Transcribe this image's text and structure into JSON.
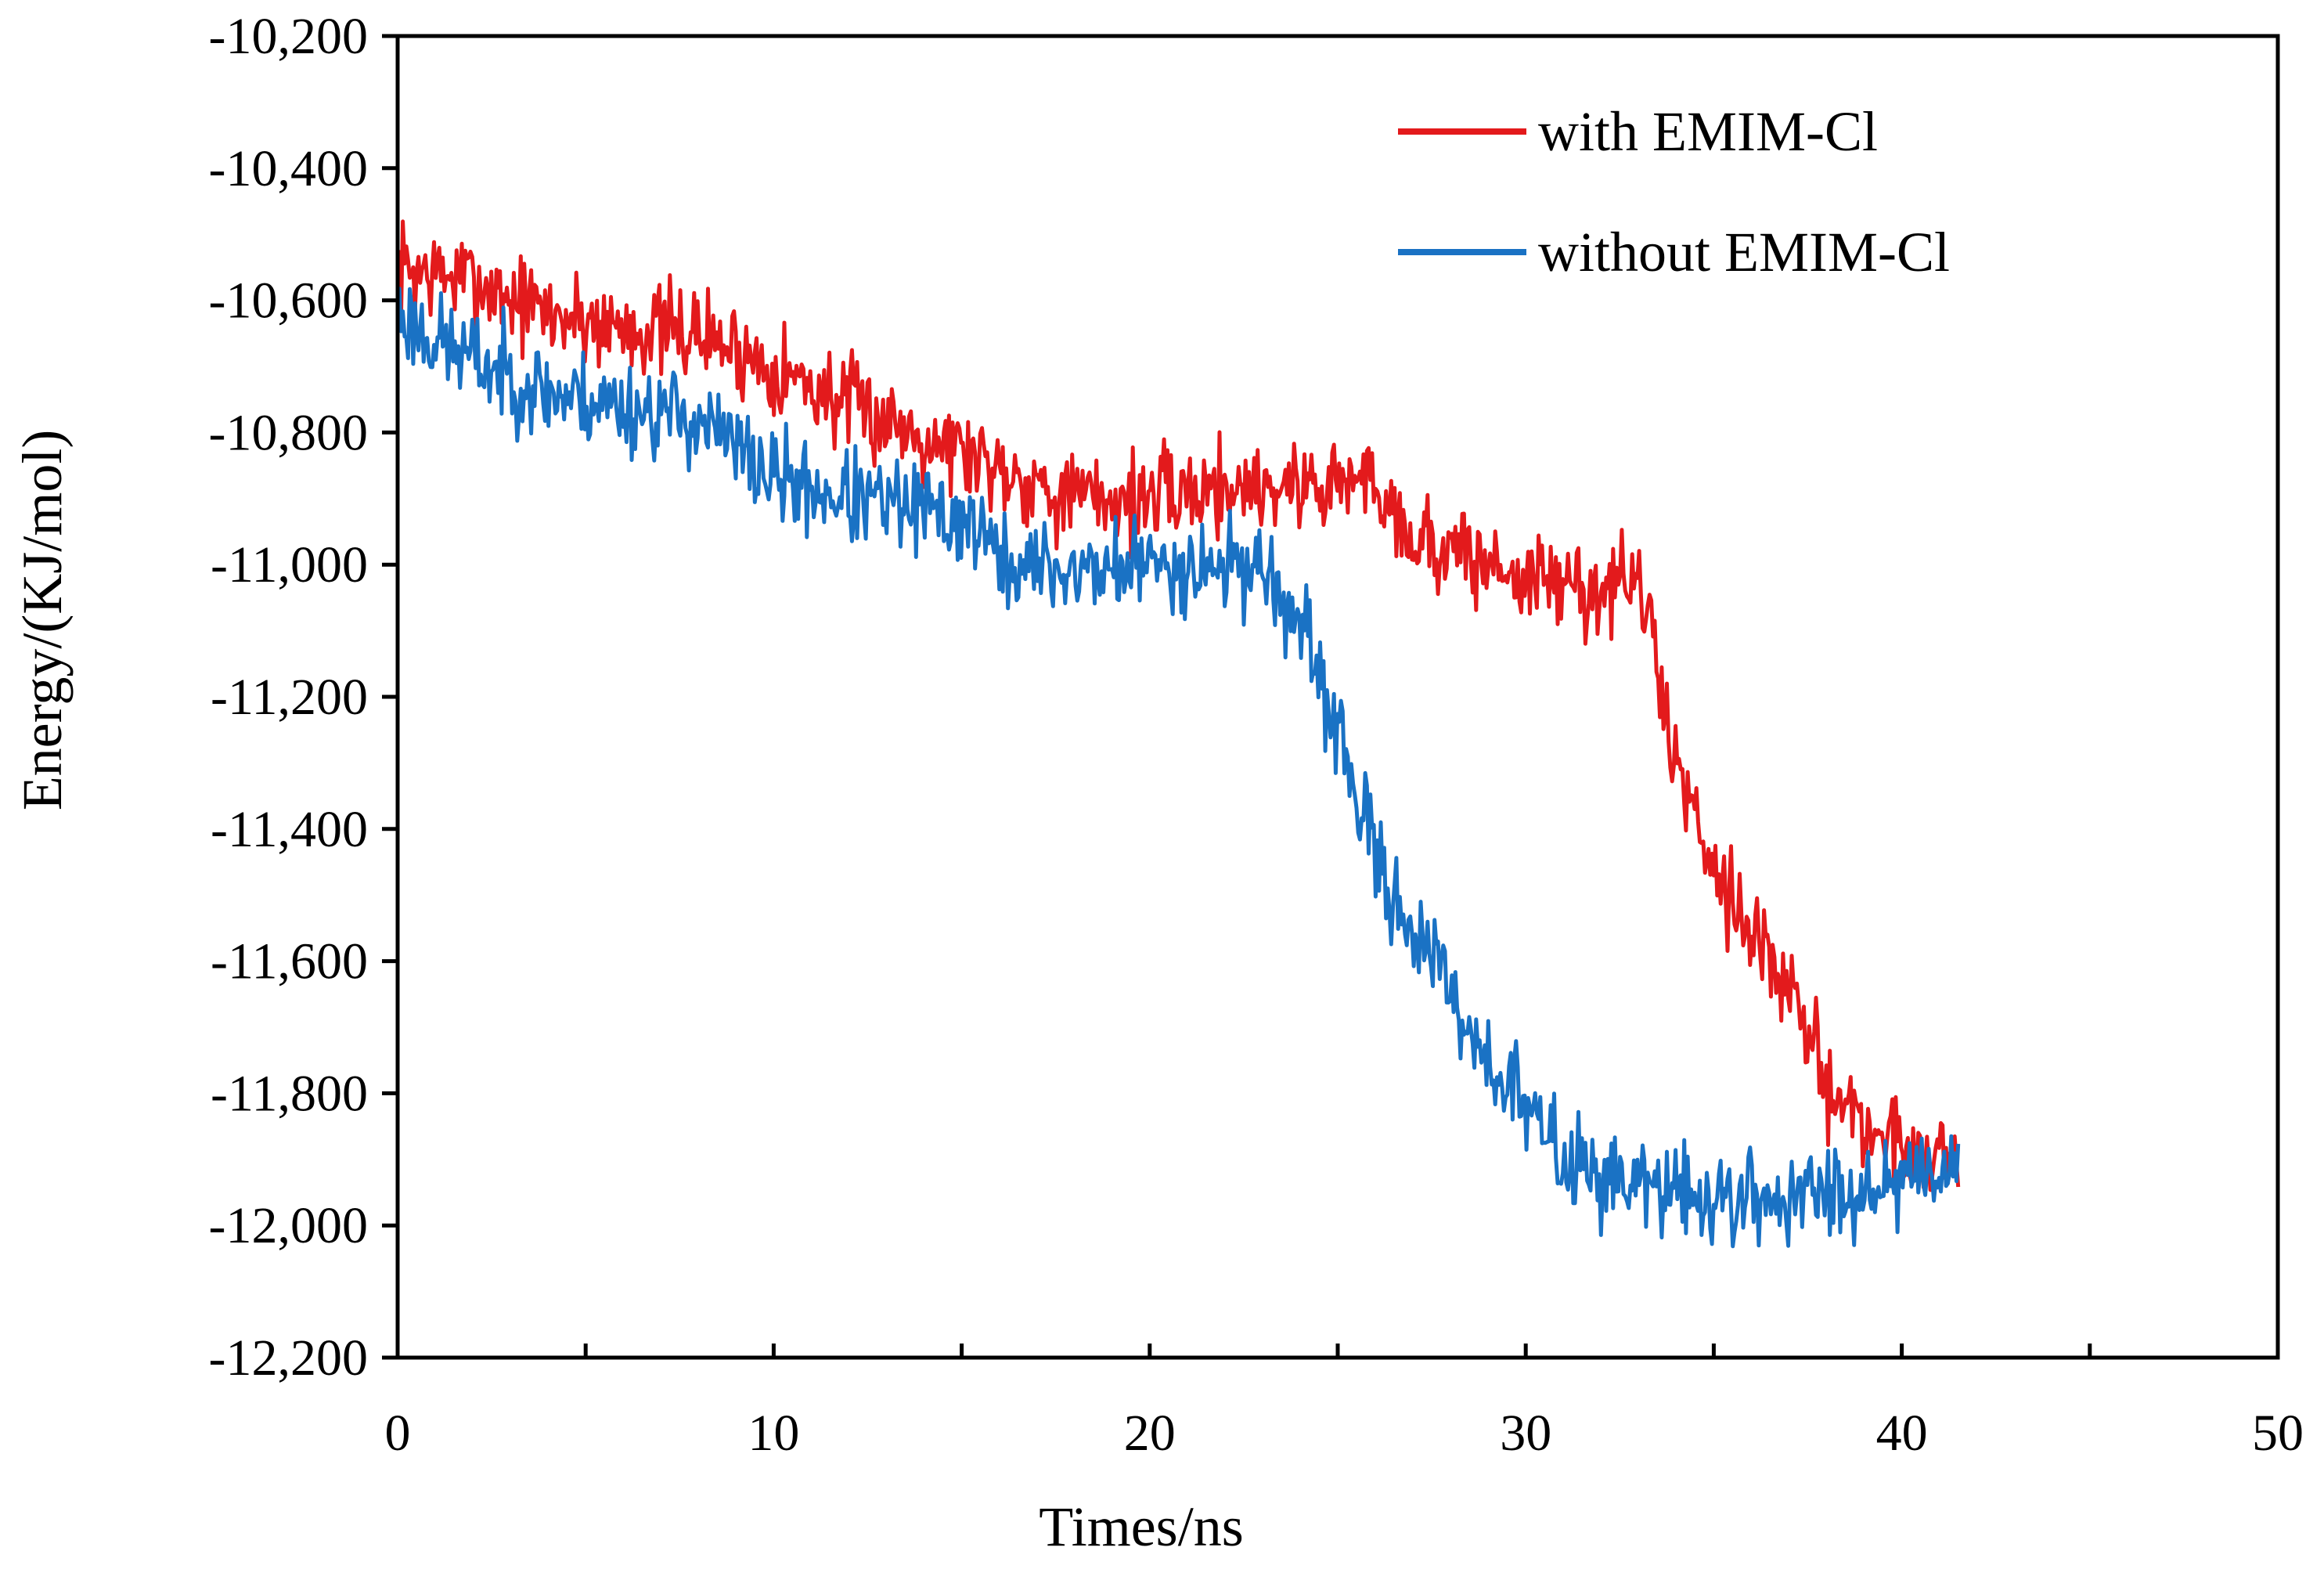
{
  "chart_data": {
    "type": "line",
    "title": "",
    "xlabel": "Times/ns",
    "ylabel": "Energy/(KJ/mol)",
    "xlim": [
      0,
      50
    ],
    "ylim": [
      -12200,
      -10200
    ],
    "grid": false,
    "legend_position": "top-right",
    "x_ticks": [
      0,
      10,
      20,
      30,
      40,
      50
    ],
    "x_tick_labels": [
      "0",
      "10",
      "20",
      "30",
      "40",
      "50"
    ],
    "y_ticks": [
      -10200,
      -10400,
      -10600,
      -10800,
      -11000,
      -11200,
      -11400,
      -11600,
      -11800,
      -12000,
      -12200
    ],
    "y_tick_labels": [
      "-10,200",
      "-10,400",
      "-10,600",
      "-10,800",
      "-11,000",
      "-11,200",
      "-11,400",
      "-11,600",
      "-11,800",
      "-12,000",
      "-12,200"
    ],
    "series": [
      {
        "name": "with EMIM-Cl",
        "color": "#e31a1c",
        "noise": 55,
        "seed": 7,
        "x": [
          0,
          1,
          2,
          4,
          6,
          8,
          10,
          12,
          14,
          16,
          18,
          20,
          22,
          24,
          26,
          27,
          30,
          32,
          33,
          34,
          35,
          36,
          37,
          38,
          39,
          40,
          41.5
        ],
        "values": [
          -10550,
          -10560,
          -10570,
          -10620,
          -10640,
          -10650,
          -10700,
          -10760,
          -10800,
          -10850,
          -10900,
          -10900,
          -10880,
          -10880,
          -10870,
          -10960,
          -11020,
          -11040,
          -11020,
          -11300,
          -11450,
          -11550,
          -11650,
          -11780,
          -11850,
          -11880,
          -11900
        ]
      },
      {
        "name": "without EMIM-Cl",
        "color": "#1a72c4",
        "noise": 55,
        "seed": 23,
        "x": [
          0,
          1,
          2,
          4,
          6,
          8,
          10,
          12,
          14,
          15.5,
          16,
          18,
          20,
          23,
          24,
          25,
          26,
          27,
          28,
          29,
          30,
          31,
          33,
          35,
          37,
          39,
          41.5
        ],
        "values": [
          -10620,
          -10660,
          -10690,
          -10740,
          -10760,
          -10780,
          -10870,
          -10900,
          -10920,
          -10940,
          -11000,
          -11010,
          -11000,
          -11000,
          -11100,
          -11250,
          -11450,
          -11550,
          -11650,
          -11750,
          -11820,
          -11900,
          -11940,
          -11960,
          -11960,
          -11940,
          -11900
        ]
      }
    ]
  }
}
